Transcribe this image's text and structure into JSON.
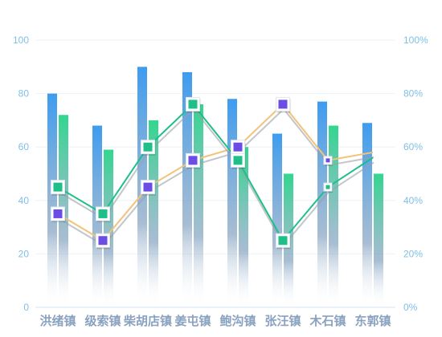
{
  "chart_data": {
    "type": "bar",
    "categories": [
      "洪绪镇",
      "级索镇",
      "柴胡店镇",
      "姜屯镇",
      "鲍沟镇",
      "张汪镇",
      "木石镇",
      "东郭镇"
    ],
    "category_labels": [
      "洪绪镇",
      "级索镇",
      "柴胡店镇",
      "姜屯镇",
      "鲍沟镇",
      "张汪镇",
      "木石镇",
      "东郭镇"
    ],
    "ylim": [
      0,
      100
    ],
    "y2lim": [
      0,
      100
    ],
    "y_ticks": [
      "0",
      "20",
      "40",
      "60",
      "80",
      "100"
    ],
    "y2_ticks": [
      "0%",
      "20%",
      "40%",
      "60%",
      "80%",
      "100%"
    ],
    "y_tick_values": [
      0,
      20,
      40,
      60,
      80,
      100
    ],
    "grid": true,
    "series": [
      {
        "kind": "bar",
        "axis": "left",
        "values": [
          80,
          68,
          90,
          88,
          78,
          65,
          77,
          69
        ],
        "color_top": "#3d9cf0",
        "color_bottom": "#ffffff"
      },
      {
        "kind": "bar",
        "axis": "left",
        "values": [
          72,
          59,
          70,
          76,
          60,
          50,
          68,
          50
        ],
        "color_top": "#33d68f",
        "color_bottom": "#ffffff"
      },
      {
        "kind": "line",
        "axis": "right",
        "values": [
          35,
          25,
          45,
          55,
          60,
          76,
          55,
          58
        ],
        "color": "#f4c27a",
        "marker": "square",
        "marker_color": "#6b4de6",
        "marker_values": [
          35,
          25,
          45,
          55,
          60,
          76,
          55,
          null
        ]
      },
      {
        "kind": "line",
        "axis": "right",
        "values": [
          45,
          35,
          60,
          76,
          55,
          25,
          45,
          56
        ],
        "color": "#1fbf8a",
        "marker": "square",
        "marker_color": "#1fbf8a",
        "marker_values": [
          45,
          35,
          60,
          76,
          55,
          25,
          45,
          null
        ]
      }
    ]
  }
}
